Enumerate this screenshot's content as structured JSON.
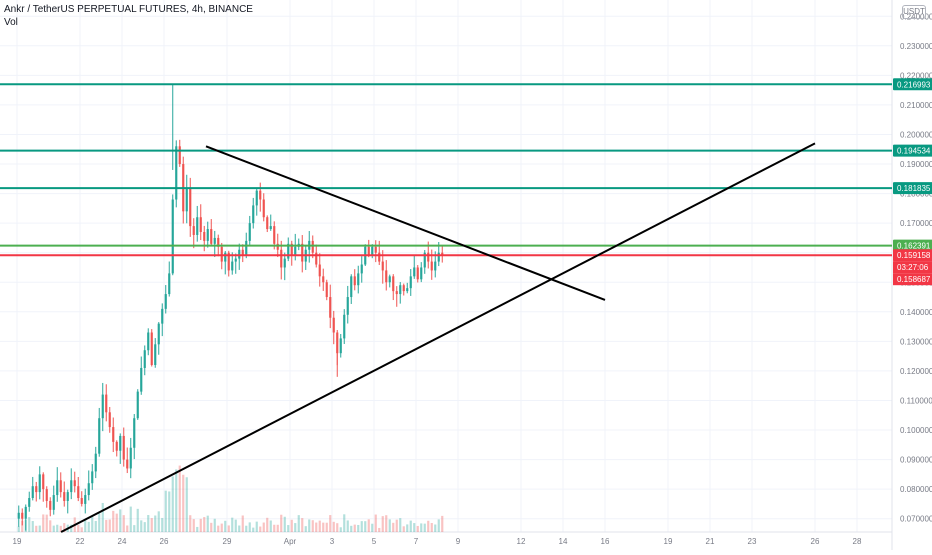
{
  "header": {
    "title": "Ankr / TetherUS PERPETUAL FUTURES, 4h, BINANCE",
    "volume_label": "Vol"
  },
  "currency_button": "USDT",
  "chart_data": {
    "type": "candlestick",
    "symbol": "Ankr / TetherUS PERPETUAL FUTURES",
    "interval": "4h",
    "exchange": "BINANCE",
    "ylim": [
      0.0655,
      0.2455
    ],
    "y_ticks": [
      "0.070000",
      "0.080000",
      "0.090000",
      "0.100000",
      "0.110000",
      "0.120000",
      "0.130000",
      "0.140000",
      "0.150000",
      "0.160000",
      "0.170000",
      "0.180000",
      "0.190000",
      "0.200000",
      "0.210000",
      "0.220000",
      "0.230000",
      "0.240000"
    ],
    "y_tick_values": [
      0.07,
      0.08,
      0.09,
      0.1,
      0.11,
      0.12,
      0.13,
      0.14,
      0.15,
      0.16,
      0.17,
      0.18,
      0.19,
      0.2,
      0.21,
      0.22,
      0.23,
      0.24
    ],
    "x_ticks": [
      {
        "label": "19",
        "day": 0
      },
      {
        "label": "22",
        "day": 3
      },
      {
        "label": "24",
        "day": 5
      },
      {
        "label": "26",
        "day": 7
      },
      {
        "label": "29",
        "day": 10
      },
      {
        "label": "Apr",
        "day": 13
      },
      {
        "label": "3",
        "day": 15
      },
      {
        "label": "5",
        "day": 17
      },
      {
        "label": "7",
        "day": 19
      },
      {
        "label": "9",
        "day": 21
      },
      {
        "label": "12",
        "day": 24
      },
      {
        "label": "14",
        "day": 26
      },
      {
        "label": "16",
        "day": 28
      },
      {
        "label": "19",
        "day": 31
      },
      {
        "label": "21",
        "day": 33
      },
      {
        "label": "23",
        "day": 35
      },
      {
        "label": "26",
        "day": 38
      },
      {
        "label": "28",
        "day": 40
      }
    ],
    "grid": true,
    "candles_close": [
      0.072,
      0.07,
      0.074,
      0.077,
      0.081,
      0.079,
      0.085,
      0.08,
      0.076,
      0.073,
      0.078,
      0.083,
      0.079,
      0.076,
      0.079,
      0.083,
      0.081,
      0.077,
      0.075,
      0.078,
      0.082,
      0.086,
      0.092,
      0.104,
      0.112,
      0.106,
      0.101,
      0.096,
      0.093,
      0.098,
      0.09,
      0.087,
      0.094,
      0.104,
      0.113,
      0.121,
      0.127,
      0.133,
      0.122,
      0.129,
      0.136,
      0.141,
      0.146,
      0.153,
      0.178,
      0.196,
      0.19,
      0.174,
      0.182,
      0.169,
      0.166,
      0.172,
      0.167,
      0.164,
      0.168,
      0.163,
      0.165,
      0.162,
      0.157,
      0.16,
      0.154,
      0.157,
      0.158,
      0.161,
      0.159,
      0.164,
      0.17,
      0.176,
      0.181,
      0.178,
      0.172,
      0.168,
      0.169,
      0.163,
      0.161,
      0.155,
      0.158,
      0.163,
      0.159,
      0.162,
      0.163,
      0.157,
      0.161,
      0.164,
      0.16,
      0.156,
      0.152,
      0.15,
      0.145,
      0.138,
      0.133,
      0.126,
      0.131,
      0.139,
      0.145,
      0.152,
      0.149,
      0.153,
      0.156,
      0.162,
      0.159,
      0.162,
      0.16,
      0.157,
      0.154,
      0.15,
      0.152,
      0.147,
      0.146,
      0.149,
      0.147,
      0.148,
      0.152,
      0.155,
      0.151,
      0.155,
      0.16,
      0.157,
      0.154,
      0.157,
      0.16,
      0.159
    ],
    "candles_high_low": "approximate wicks around each candle; spike high near 0.217 and low near 0.118",
    "volume_relative": "bars under candles, peak near the late-March breakout",
    "horizontal_levels": [
      {
        "value": 0.216993,
        "label": "0.216993",
        "color": "#089981"
      },
      {
        "value": 0.194534,
        "label": "0.194534",
        "color": "#089981"
      },
      {
        "value": 0.181835,
        "label": "0.181835",
        "color": "#089981"
      },
      {
        "value": 0.162391,
        "label": "0.162391",
        "color": "#4caf50"
      },
      {
        "value": 0.159158,
        "label": "0.159158",
        "color": "#f23645"
      }
    ],
    "price_label": {
      "value": "0.159158",
      "countdown": "03:27:06",
      "color": "#f23645"
    },
    "low_label": {
      "value": "0.158687",
      "color": "#f23645"
    },
    "trendlines": [
      {
        "name": "descending",
        "from": {
          "day": 9.0,
          "price": 0.196
        },
        "to": {
          "day": 28.0,
          "price": 0.144
        },
        "color": "#000000"
      },
      {
        "name": "ascending",
        "from": {
          "day": 2.1,
          "price": 0.0655
        },
        "to": {
          "day": 38.0,
          "price": 0.197
        },
        "color": "#000000"
      }
    ],
    "colors": {
      "up": "#26a69a",
      "down": "#ef5350",
      "grid": "#f0f3fa",
      "axis_text": "#787b86"
    }
  }
}
